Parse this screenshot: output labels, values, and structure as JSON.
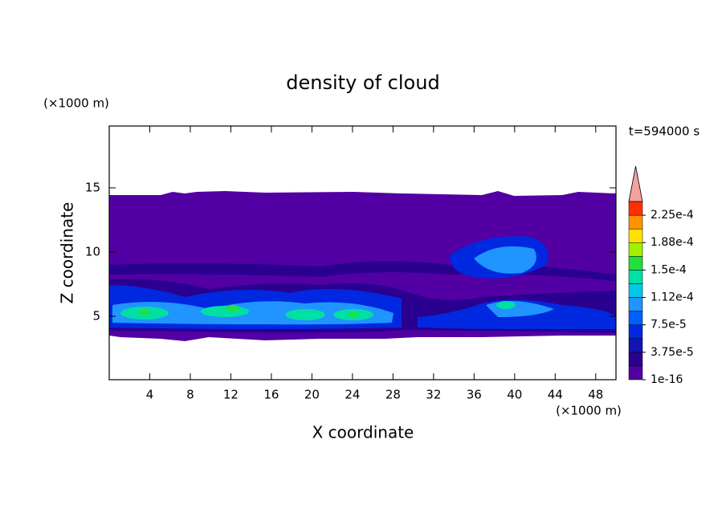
{
  "chart_data": {
    "type": "contour",
    "title": "density of cloud",
    "xlabel": "X coordinate",
    "ylabel": "Z coordinate",
    "x_unit": "(×1000 m)",
    "y_unit": "(×1000 m)",
    "annotation": "t=594000 s",
    "xlim": [
      0,
      50
    ],
    "xticks": [
      4,
      8,
      12,
      16,
      20,
      24,
      28,
      32,
      36,
      40,
      44,
      48
    ],
    "ylim": [
      0,
      20
    ],
    "yticks": [
      5,
      10,
      15
    ],
    "colorbar": {
      "lim": [
        1e-16,
        0.00024375
      ],
      "colors": [
        "#5200a4",
        "#2a0090",
        "#1414b4",
        "#0028e0",
        "#0060ff",
        "#2094ff",
        "#00c8ec",
        "#00e0a4",
        "#20e040",
        "#a4f000",
        "#ffe000",
        "#ff9400",
        "#ff3000"
      ],
      "extend_color": "#f4a0a0",
      "ticks": [
        1e-16,
        {
          "value": 3.75e-05,
          "label": "3.75e-5"
        },
        {
          "value": 7.5e-05,
          "label": "7.5e-5"
        },
        {
          "value": 0.0001125,
          "label": "1.12e-4"
        },
        {
          "value": 0.00015,
          "label": "1.5e-4"
        },
        {
          "value": 0.0001875,
          "label": "1.88e-4"
        },
        {
          "value": 0.000225,
          "label": "2.25e-4"
        }
      ]
    }
  }
}
